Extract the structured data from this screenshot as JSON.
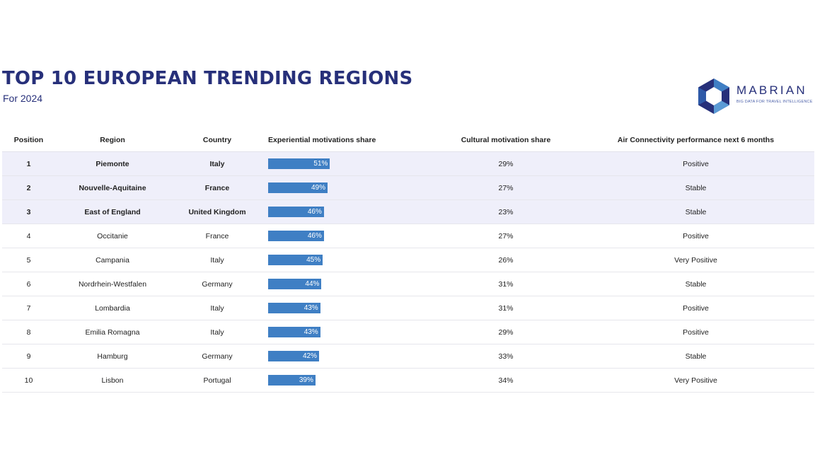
{
  "title": "TOP 10 EUROPEAN TRENDING REGIONS",
  "subtitle": "For 2024",
  "logo": {
    "name": "MABRIAN",
    "tagline": "BIG DATA FOR TRAVEL INTELLIGENCE"
  },
  "colors": {
    "title": "#27307a",
    "bar": "#3f7fc4",
    "highlight_row": "#efeffa"
  },
  "chart_data": {
    "type": "table",
    "columns": [
      "Position",
      "Region",
      "Country",
      "Experiential motivations share",
      "Cultural motivation share",
      "Air Connectivity performance next 6 months"
    ],
    "bar_max_percent": 140,
    "rows": [
      {
        "position": "1",
        "region": "Piemonte",
        "country": "Italy",
        "experiential": 51,
        "experiential_label": "51%",
        "cultural": "29%",
        "air": "Positive",
        "highlight": true
      },
      {
        "position": "2",
        "region": "Nouvelle-Aquitaine",
        "country": "France",
        "experiential": 49,
        "experiential_label": "49%",
        "cultural": "27%",
        "air": "Stable",
        "highlight": true
      },
      {
        "position": "3",
        "region": "East of England",
        "country": "United Kingdom",
        "experiential": 46,
        "experiential_label": "46%",
        "cultural": "23%",
        "air": "Stable",
        "highlight": true
      },
      {
        "position": "4",
        "region": "Occitanie",
        "country": "France",
        "experiential": 46,
        "experiential_label": "46%",
        "cultural": "27%",
        "air": "Positive",
        "highlight": false
      },
      {
        "position": "5",
        "region": "Campania",
        "country": "Italy",
        "experiential": 45,
        "experiential_label": "45%",
        "cultural": "26%",
        "air": "Very Positive",
        "highlight": false
      },
      {
        "position": "6",
        "region": "Nordrhein-Westfalen",
        "country": "Germany",
        "experiential": 44,
        "experiential_label": "44%",
        "cultural": "31%",
        "air": "Stable",
        "highlight": false
      },
      {
        "position": "7",
        "region": "Lombardia",
        "country": "Italy",
        "experiential": 43,
        "experiential_label": "43%",
        "cultural": "31%",
        "air": "Positive",
        "highlight": false
      },
      {
        "position": "8",
        "region": "Emilia Romagna",
        "country": "Italy",
        "experiential": 43,
        "experiential_label": "43%",
        "cultural": "29%",
        "air": "Positive",
        "highlight": false
      },
      {
        "position": "9",
        "region": "Hamburg",
        "country": "Germany",
        "experiential": 42,
        "experiential_label": "42%",
        "cultural": "33%",
        "air": "Stable",
        "highlight": false
      },
      {
        "position": "10",
        "region": "Lisbon",
        "country": "Portugal",
        "experiential": 39,
        "experiential_label": "39%",
        "cultural": "34%",
        "air": "Very Positive",
        "highlight": false
      }
    ]
  }
}
